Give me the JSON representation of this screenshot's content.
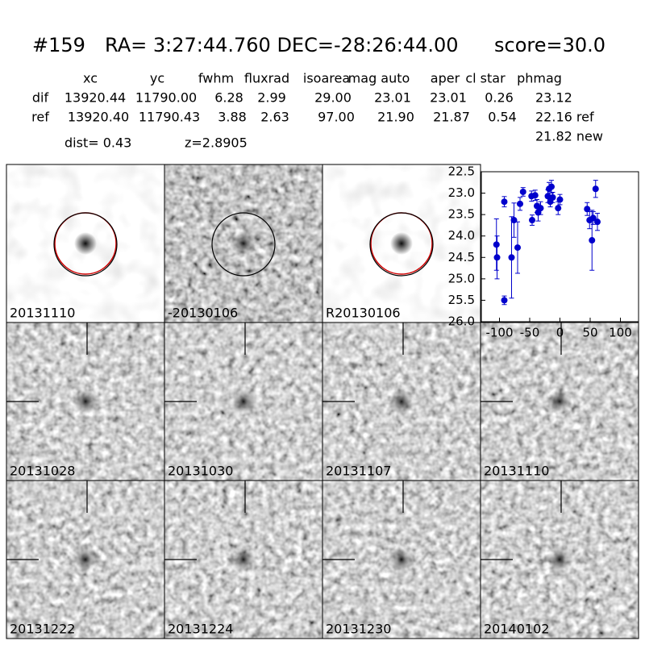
{
  "header": {
    "id": "#159",
    "coords": "RA= 3:27:44.760 DEC=-28:26:44.00",
    "score": "score=30.0"
  },
  "table": {
    "columns": [
      "xc",
      "yc",
      "fwhm",
      "fluxrad",
      "isoarea",
      "mag auto",
      "aper",
      "cl star",
      "phmag"
    ],
    "rows": [
      [
        "dif",
        "13920.44",
        "11790.00",
        "6.28",
        "2.99",
        "29.00",
        "23.01",
        "23.01",
        "0.26",
        "23.12"
      ],
      [
        "ref",
        "13920.40",
        "11790.43",
        "3.88",
        "2.63",
        "97.00",
        "21.90",
        "21.87",
        "0.54",
        "22.16 ref"
      ]
    ],
    "extra": "21.82 new",
    "dist": "dist=  0.43",
    "z": "z=2.8905"
  },
  "panels": [
    {
      "label": "20131110"
    },
    {
      "label": "-20130106"
    },
    {
      "label": "R20130106"
    },
    {
      "label": "20131028"
    },
    {
      "label": "20131030"
    },
    {
      "label": "20131107"
    },
    {
      "label": "20131110",
      "color": "#ff0000"
    },
    {
      "label": "20131222"
    },
    {
      "label": "20131224"
    },
    {
      "label": "20131230"
    },
    {
      "label": "20140102"
    }
  ],
  "chart_data": {
    "type": "scatter",
    "color": "#0000cc",
    "x": [
      -105,
      -104,
      -92,
      -92,
      -80,
      -76,
      -70,
      -66,
      -61,
      -47,
      -46,
      -41,
      -38,
      -36,
      -32,
      -20,
      -18,
      -16,
      -14,
      -12,
      -3,
      0,
      45,
      49,
      53,
      55,
      59,
      62
    ],
    "values": [
      24.2,
      24.5,
      23.2,
      25.5,
      24.5,
      23.63,
      24.27,
      23.25,
      22.97,
      23.07,
      23.63,
      23.05,
      23.3,
      23.45,
      23.35,
      23.07,
      22.9,
      23.2,
      22.85,
      23.1,
      23.35,
      23.15,
      23.37,
      23.63,
      24.1,
      23.58,
      22.9,
      23.67
    ],
    "errors": [
      0.6,
      0.5,
      0.12,
      0.1,
      0.95,
      0.4,
      0.6,
      0.15,
      0.1,
      0.12,
      0.12,
      0.12,
      0.15,
      0.2,
      0.15,
      0.15,
      0.15,
      0.12,
      0.15,
      0.12,
      0.15,
      0.12,
      0.15,
      0.2,
      0.7,
      0.15,
      0.2,
      0.2
    ],
    "xlim": [
      -130,
      130
    ],
    "ylim": [
      26.0,
      22.5
    ],
    "xticks": [
      -100,
      -50,
      0,
      50,
      100
    ],
    "yticks": [
      22.5,
      {
        "value": 23,
        "label": "23.0"
      },
      23.5,
      {
        "value": 24,
        "label": "24.0"
      },
      24.5,
      {
        "value": 25,
        "label": "25.0"
      },
      25.5,
      {
        "value": 26,
        "label": "26.0"
      }
    ]
  }
}
